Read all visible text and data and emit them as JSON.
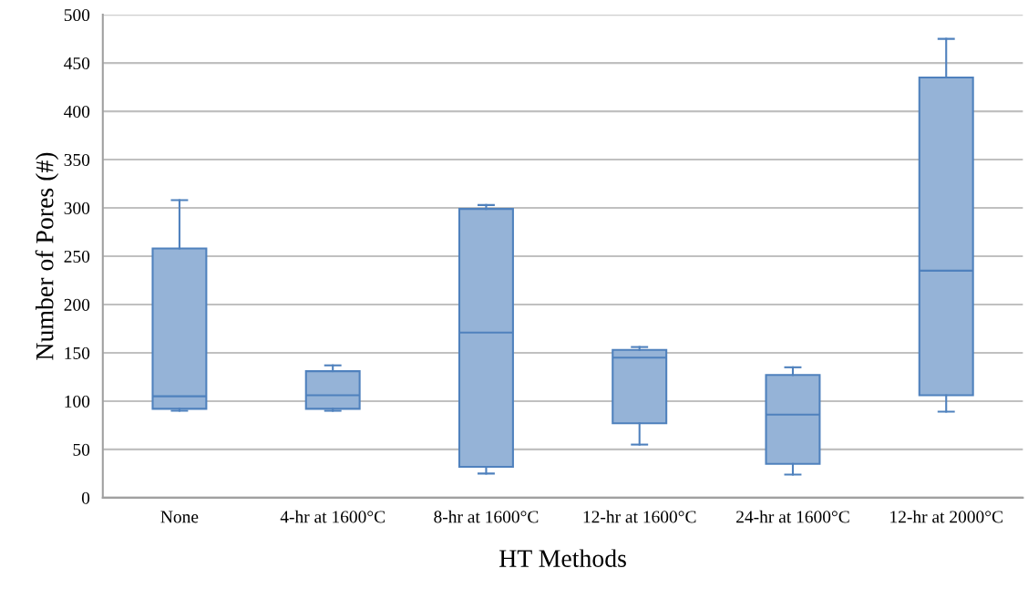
{
  "chart_data": {
    "type": "box",
    "xlabel": "HT Methods",
    "ylabel": "Number of Pores (#)",
    "categories": [
      "None",
      "4-hr at 1600°C",
      "8-hr at 1600°C",
      "12-hr at 1600°C",
      "24-hr at 1600°C",
      "12-hr at 2000°C"
    ],
    "boxes": [
      {
        "low": 90,
        "q1": 92,
        "median": 105,
        "q3": 258,
        "high": 308
      },
      {
        "low": 90,
        "q1": 92,
        "median": 106,
        "q3": 131,
        "high": 137
      },
      {
        "low": 25,
        "q1": 32,
        "median": 171,
        "q3": 299,
        "high": 303
      },
      {
        "low": 55,
        "q1": 77,
        "median": 145,
        "q3": 153,
        "high": 156
      },
      {
        "low": 24,
        "q1": 35,
        "median": 86,
        "q3": 127,
        "high": 135
      },
      {
        "low": 89,
        "q1": 106,
        "median": 235,
        "q3": 435,
        "high": 475
      }
    ],
    "color": "#95b3d7",
    "ylim": [
      0,
      500
    ],
    "yticks": [
      0,
      50,
      100,
      150,
      200,
      250,
      300,
      350,
      400,
      450,
      500
    ],
    "grid": "y"
  }
}
